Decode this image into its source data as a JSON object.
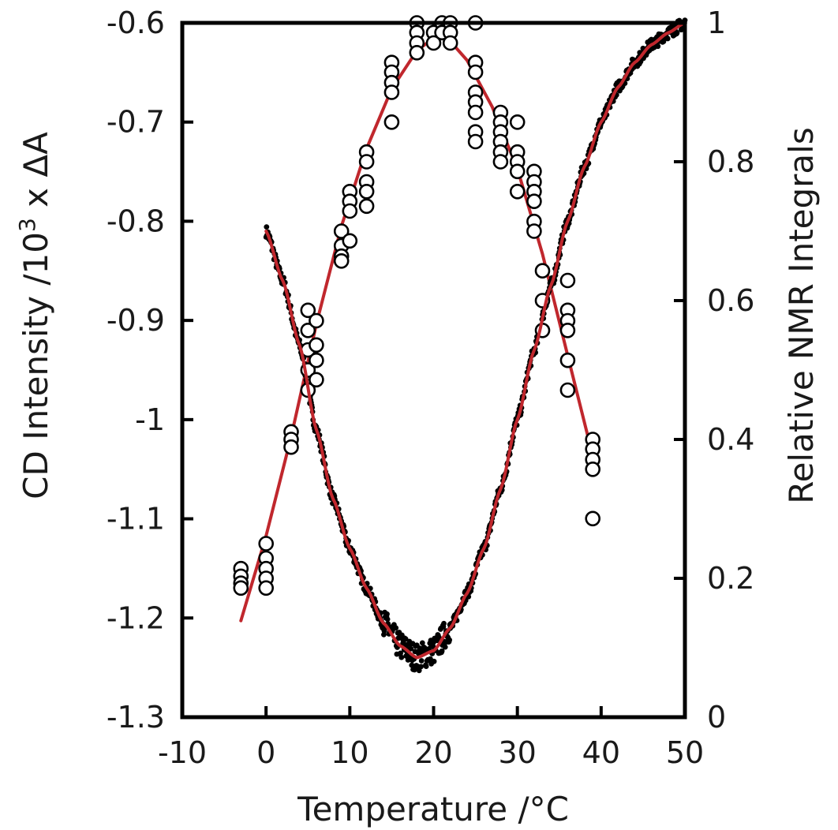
{
  "chart_data": {
    "type": "scatter",
    "xlabel": "Temperature /°C",
    "ylabel_left_prefix": "CD Intensity /10",
    "ylabel_left_sup": "3",
    "ylabel_left_suffix": " x ΔA",
    "ylabel_right": "Relative NMR Integrals",
    "xlim": [
      -10,
      50
    ],
    "ylim_left": [
      -1.3,
      -0.6
    ],
    "ylim_right": [
      0,
      1
    ],
    "x_ticks": [
      "-10",
      "0",
      "10",
      "20",
      "30",
      "40",
      "50"
    ],
    "y_left_ticks": [
      "-0.6",
      "-0.7",
      "-0.8",
      "-0.9",
      "-1",
      "-1.1",
      "-1.2",
      "-1.3"
    ],
    "y_right_ticks": [
      "1",
      "0.8",
      "0.6",
      "0.4",
      "0.2",
      "0"
    ],
    "grid": false,
    "fit_color": "#c0272d",
    "series": [
      {
        "axis": "right",
        "marker": "open-circle",
        "color": "#000000",
        "points": [
          [
            -3,
            0.214
          ],
          [
            -3,
            0.203
          ],
          [
            -3,
            0.193
          ],
          [
            -3,
            0.186
          ],
          [
            0,
            0.25
          ],
          [
            0,
            0.229
          ],
          [
            0,
            0.214
          ],
          [
            0,
            0.2
          ],
          [
            0,
            0.186
          ],
          [
            3,
            0.411
          ],
          [
            3,
            0.4
          ],
          [
            3,
            0.389
          ],
          [
            5,
            0.586
          ],
          [
            5,
            0.557
          ],
          [
            5,
            0.529
          ],
          [
            5,
            0.5
          ],
          [
            5,
            0.471
          ],
          [
            6,
            0.571
          ],
          [
            6,
            0.536
          ],
          [
            6,
            0.514
          ],
          [
            6,
            0.486
          ],
          [
            9,
            0.7
          ],
          [
            9,
            0.679
          ],
          [
            9,
            0.664
          ],
          [
            9,
            0.657
          ],
          [
            10,
            0.757
          ],
          [
            10,
            0.743
          ],
          [
            10,
            0.729
          ],
          [
            10,
            0.686
          ],
          [
            12,
            0.814
          ],
          [
            12,
            0.8
          ],
          [
            12,
            0.771
          ],
          [
            12,
            0.757
          ],
          [
            12,
            0.736
          ],
          [
            15,
            0.943
          ],
          [
            15,
            0.929
          ],
          [
            15,
            0.914
          ],
          [
            15,
            0.9
          ],
          [
            15,
            0.857
          ],
          [
            18,
            1.0
          ],
          [
            18,
            0.986
          ],
          [
            18,
            0.971
          ],
          [
            18,
            0.957
          ],
          [
            20,
            0.986
          ],
          [
            20,
            0.971
          ],
          [
            21,
            1.0
          ],
          [
            21,
            0.986
          ],
          [
            22,
            1.0
          ],
          [
            22,
            0.986
          ],
          [
            22,
            0.971
          ],
          [
            25,
            1.0
          ],
          [
            25,
            0.943
          ],
          [
            25,
            0.929
          ],
          [
            25,
            0.9
          ],
          [
            25,
            0.886
          ],
          [
            25,
            0.871
          ],
          [
            25,
            0.843
          ],
          [
            25,
            0.829
          ],
          [
            28,
            0.871
          ],
          [
            28,
            0.857
          ],
          [
            28,
            0.843
          ],
          [
            28,
            0.829
          ],
          [
            28,
            0.814
          ],
          [
            28,
            0.8
          ],
          [
            30,
            0.857
          ],
          [
            30,
            0.814
          ],
          [
            30,
            0.8
          ],
          [
            30,
            0.786
          ],
          [
            30,
            0.757
          ],
          [
            32,
            0.786
          ],
          [
            32,
            0.771
          ],
          [
            32,
            0.757
          ],
          [
            32,
            0.743
          ],
          [
            32,
            0.714
          ],
          [
            32,
            0.7
          ],
          [
            33,
            0.643
          ],
          [
            33,
            0.6
          ],
          [
            33,
            0.557
          ],
          [
            36,
            0.629
          ],
          [
            36,
            0.586
          ],
          [
            36,
            0.571
          ],
          [
            36,
            0.557
          ],
          [
            36,
            0.514
          ],
          [
            36,
            0.471
          ],
          [
            39,
            0.4
          ],
          [
            39,
            0.386
          ],
          [
            39,
            0.371
          ],
          [
            39,
            0.357
          ],
          [
            39,
            0.286
          ]
        ]
      },
      {
        "axis": "left",
        "marker": "small-dot",
        "color": "#000000",
        "density": "continuous",
        "range": [
          0,
          50
        ],
        "curve_points": [
          [
            0,
            -0.81
          ],
          [
            2,
            -0.86
          ],
          [
            4,
            -0.925
          ],
          [
            6,
            -1.01
          ],
          [
            8,
            -1.08
          ],
          [
            10,
            -1.13
          ],
          [
            12,
            -1.17
          ],
          [
            14,
            -1.205
          ],
          [
            16,
            -1.228
          ],
          [
            18,
            -1.24
          ],
          [
            20,
            -1.233
          ],
          [
            22,
            -1.21
          ],
          [
            24,
            -1.175
          ],
          [
            26,
            -1.13
          ],
          [
            28,
            -1.07
          ],
          [
            30,
            -1.0
          ],
          [
            32,
            -0.93
          ],
          [
            34,
            -0.865
          ],
          [
            36,
            -0.8
          ],
          [
            38,
            -0.745
          ],
          [
            40,
            -0.7
          ],
          [
            42,
            -0.665
          ],
          [
            44,
            -0.64
          ],
          [
            46,
            -0.622
          ],
          [
            48,
            -0.61
          ],
          [
            50,
            -0.6
          ]
        ]
      }
    ],
    "fits": [
      {
        "axis": "right",
        "points": [
          [
            -3,
            0.139
          ],
          [
            0,
            0.261
          ],
          [
            3,
            0.404
          ],
          [
            6,
            0.566
          ],
          [
            9,
            0.707
          ],
          [
            12,
            0.819
          ],
          [
            15,
            0.905
          ],
          [
            18,
            0.96
          ],
          [
            21,
            0.987
          ],
          [
            24,
            0.946
          ],
          [
            27,
            0.879
          ],
          [
            30,
            0.79
          ],
          [
            33,
            0.667
          ],
          [
            36,
            0.521
          ],
          [
            38.8,
            0.386
          ]
        ]
      },
      {
        "axis": "left",
        "points": [
          [
            0,
            -0.81
          ],
          [
            2,
            -0.86
          ],
          [
            4,
            -0.925
          ],
          [
            6,
            -1.01
          ],
          [
            8,
            -1.08
          ],
          [
            10,
            -1.13
          ],
          [
            12,
            -1.17
          ],
          [
            14,
            -1.205
          ],
          [
            16,
            -1.228
          ],
          [
            18,
            -1.24
          ],
          [
            20,
            -1.233
          ],
          [
            22,
            -1.21
          ],
          [
            24,
            -1.175
          ],
          [
            26,
            -1.13
          ],
          [
            28,
            -1.07
          ],
          [
            30,
            -1.0
          ],
          [
            32,
            -0.93
          ],
          [
            34,
            -0.865
          ],
          [
            36,
            -0.8
          ],
          [
            38,
            -0.745
          ],
          [
            40,
            -0.7
          ],
          [
            42,
            -0.665
          ],
          [
            44,
            -0.64
          ],
          [
            46,
            -0.622
          ],
          [
            48,
            -0.61
          ],
          [
            50,
            -0.6
          ]
        ]
      }
    ]
  }
}
